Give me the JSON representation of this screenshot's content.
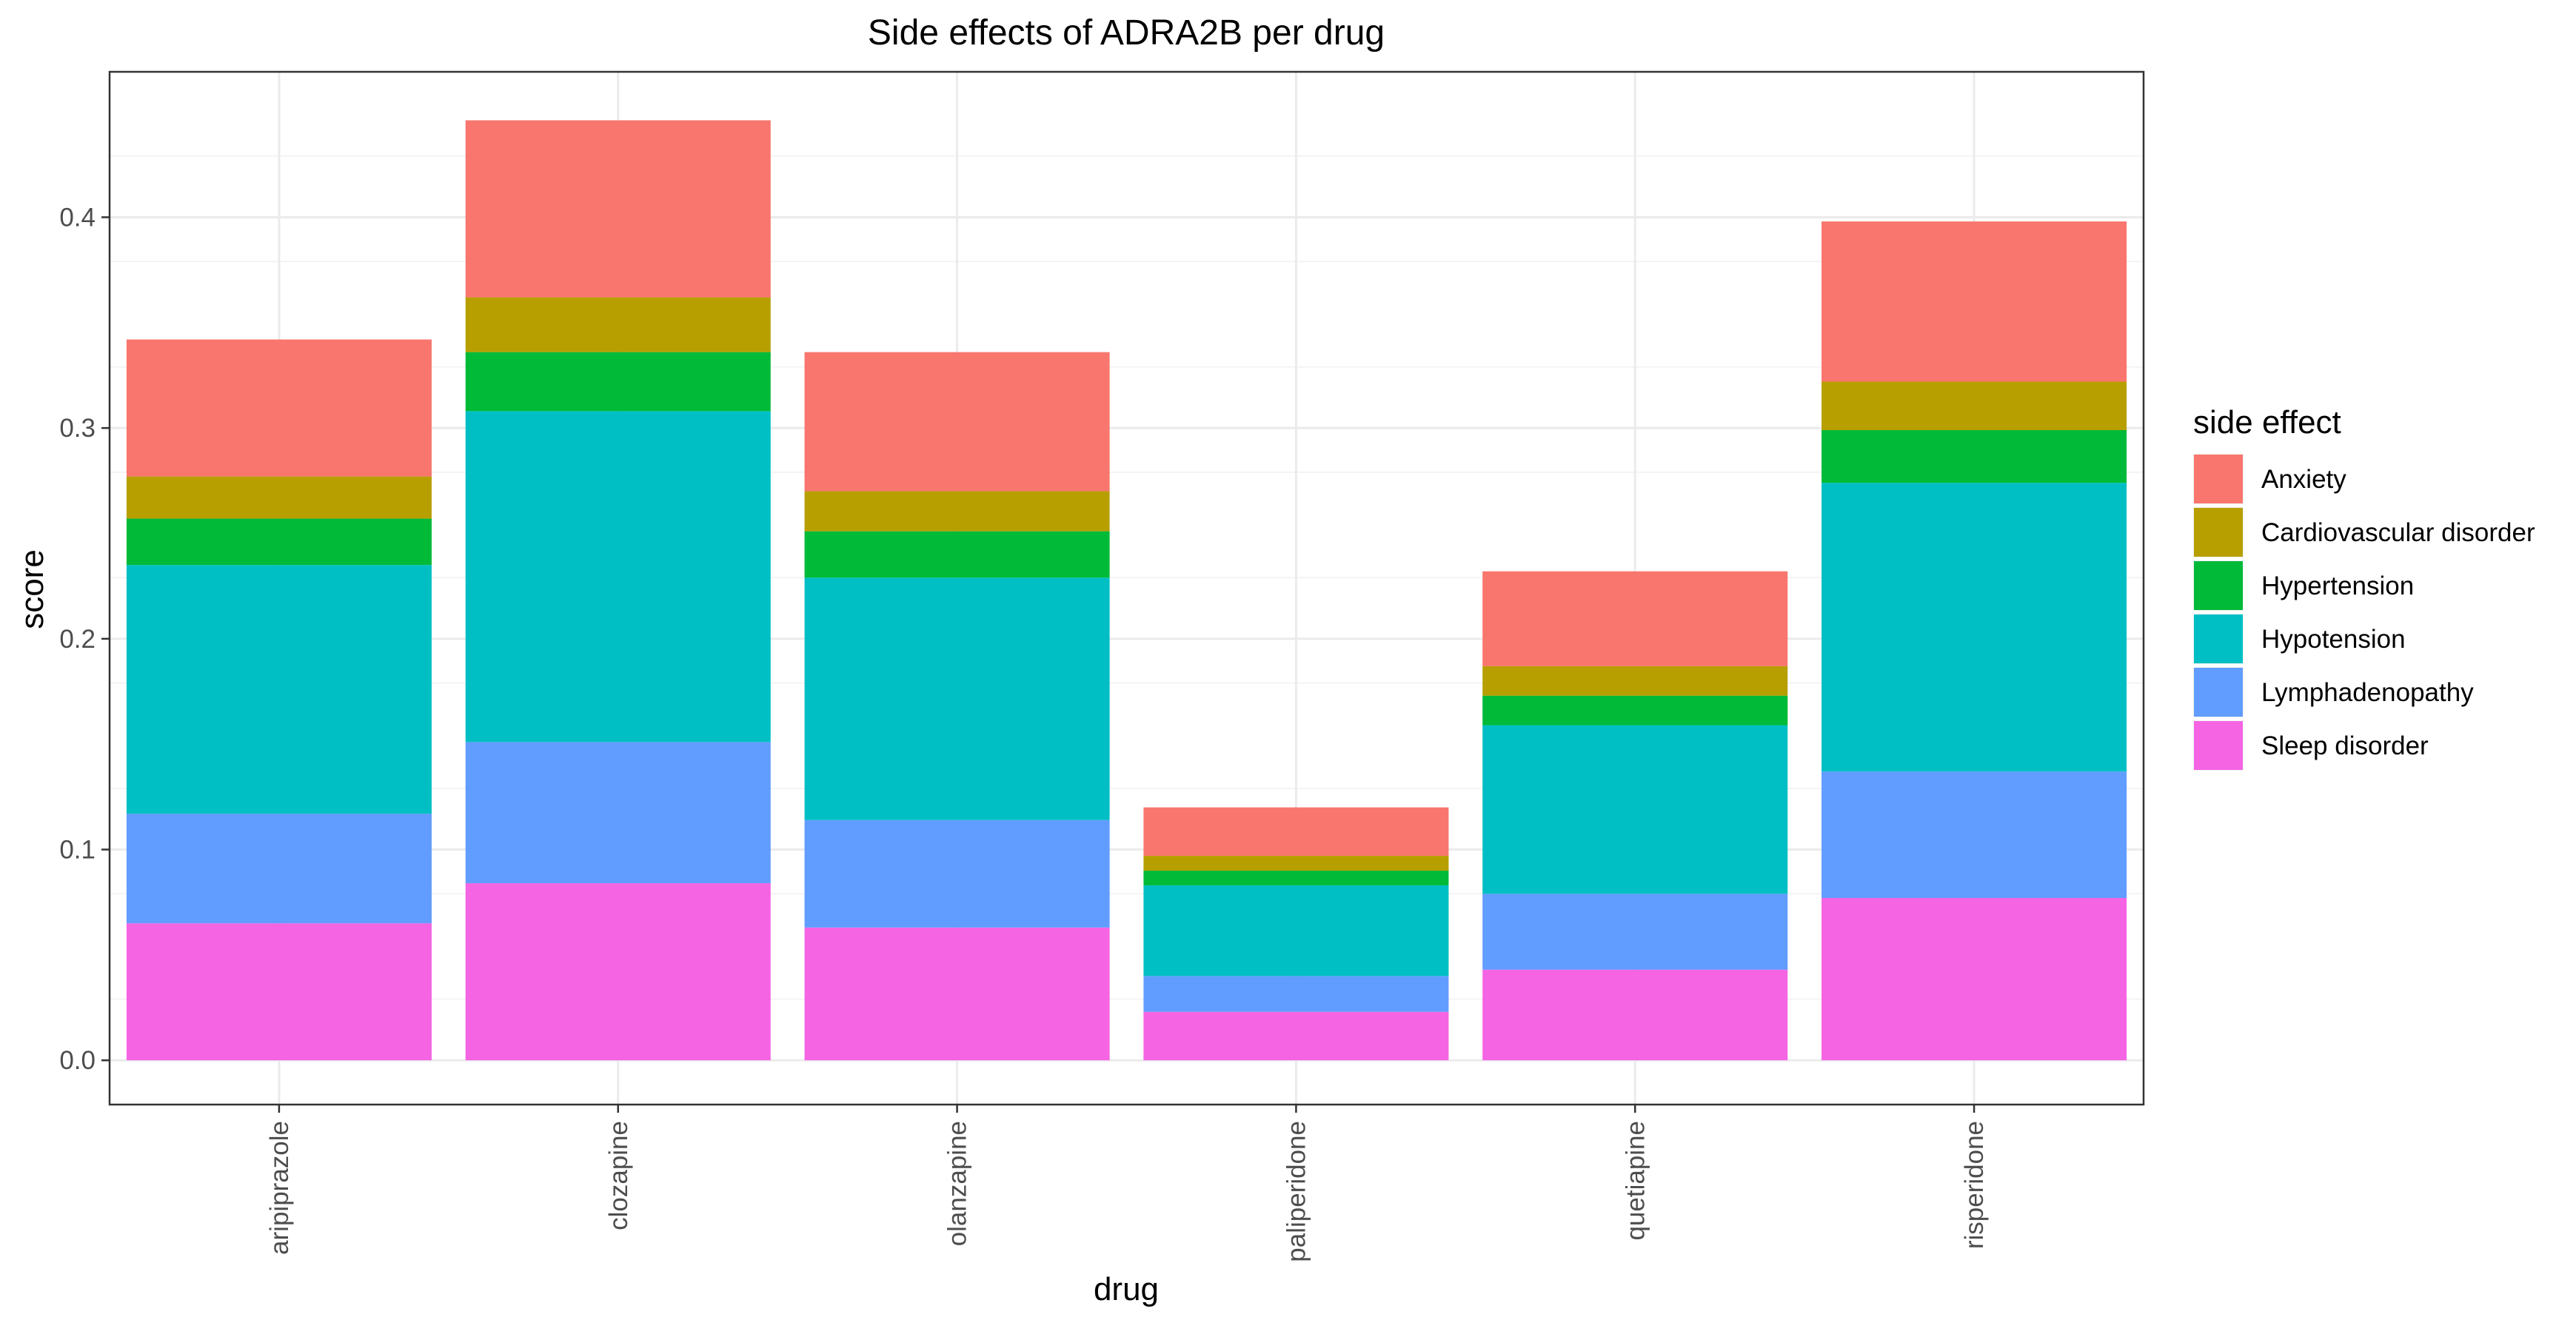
{
  "chart_data": {
    "type": "bar",
    "stacked": true,
    "title": "Side effects of ADRA2B per drug",
    "xlabel": "drug",
    "ylabel": "score",
    "ylim": [
      -0.021,
      0.469
    ],
    "yticks": [
      0.0,
      0.1,
      0.2,
      0.3,
      0.4
    ],
    "ytick_labels": [
      "0.0",
      "0.1",
      "0.2",
      "0.3",
      "0.4"
    ],
    "grid": true,
    "legend_position": "right",
    "legend_title": "side effect",
    "categories": [
      "aripiprazole",
      "clozapine",
      "olanzapine",
      "paliperidone",
      "quetiapine",
      "risperidone"
    ],
    "series": [
      {
        "name": "Sleep disorder",
        "color": "#F564E3",
        "values": [
          0.065,
          0.084,
          0.063,
          0.023,
          0.043,
          0.077
        ]
      },
      {
        "name": "Lymphadenopathy",
        "color": "#619CFF",
        "values": [
          0.052,
          0.067,
          0.051,
          0.017,
          0.036,
          0.06
        ]
      },
      {
        "name": "Hypotension",
        "color": "#00BFC4",
        "values": [
          0.118,
          0.157,
          0.115,
          0.043,
          0.08,
          0.137
        ]
      },
      {
        "name": "Hypertension",
        "color": "#00BA38",
        "values": [
          0.022,
          0.028,
          0.022,
          0.007,
          0.014,
          0.025
        ]
      },
      {
        "name": "Cardiovascular disorder",
        "color": "#B79F00",
        "values": [
          0.02,
          0.026,
          0.019,
          0.007,
          0.014,
          0.023
        ]
      },
      {
        "name": "Anxiety",
        "color": "#F8766D",
        "values": [
          0.065,
          0.084,
          0.066,
          0.023,
          0.045,
          0.076
        ]
      }
    ],
    "legend_order": [
      "Anxiety",
      "Cardiovascular disorder",
      "Hypertension",
      "Hypotension",
      "Lymphadenopathy",
      "Sleep disorder"
    ]
  }
}
